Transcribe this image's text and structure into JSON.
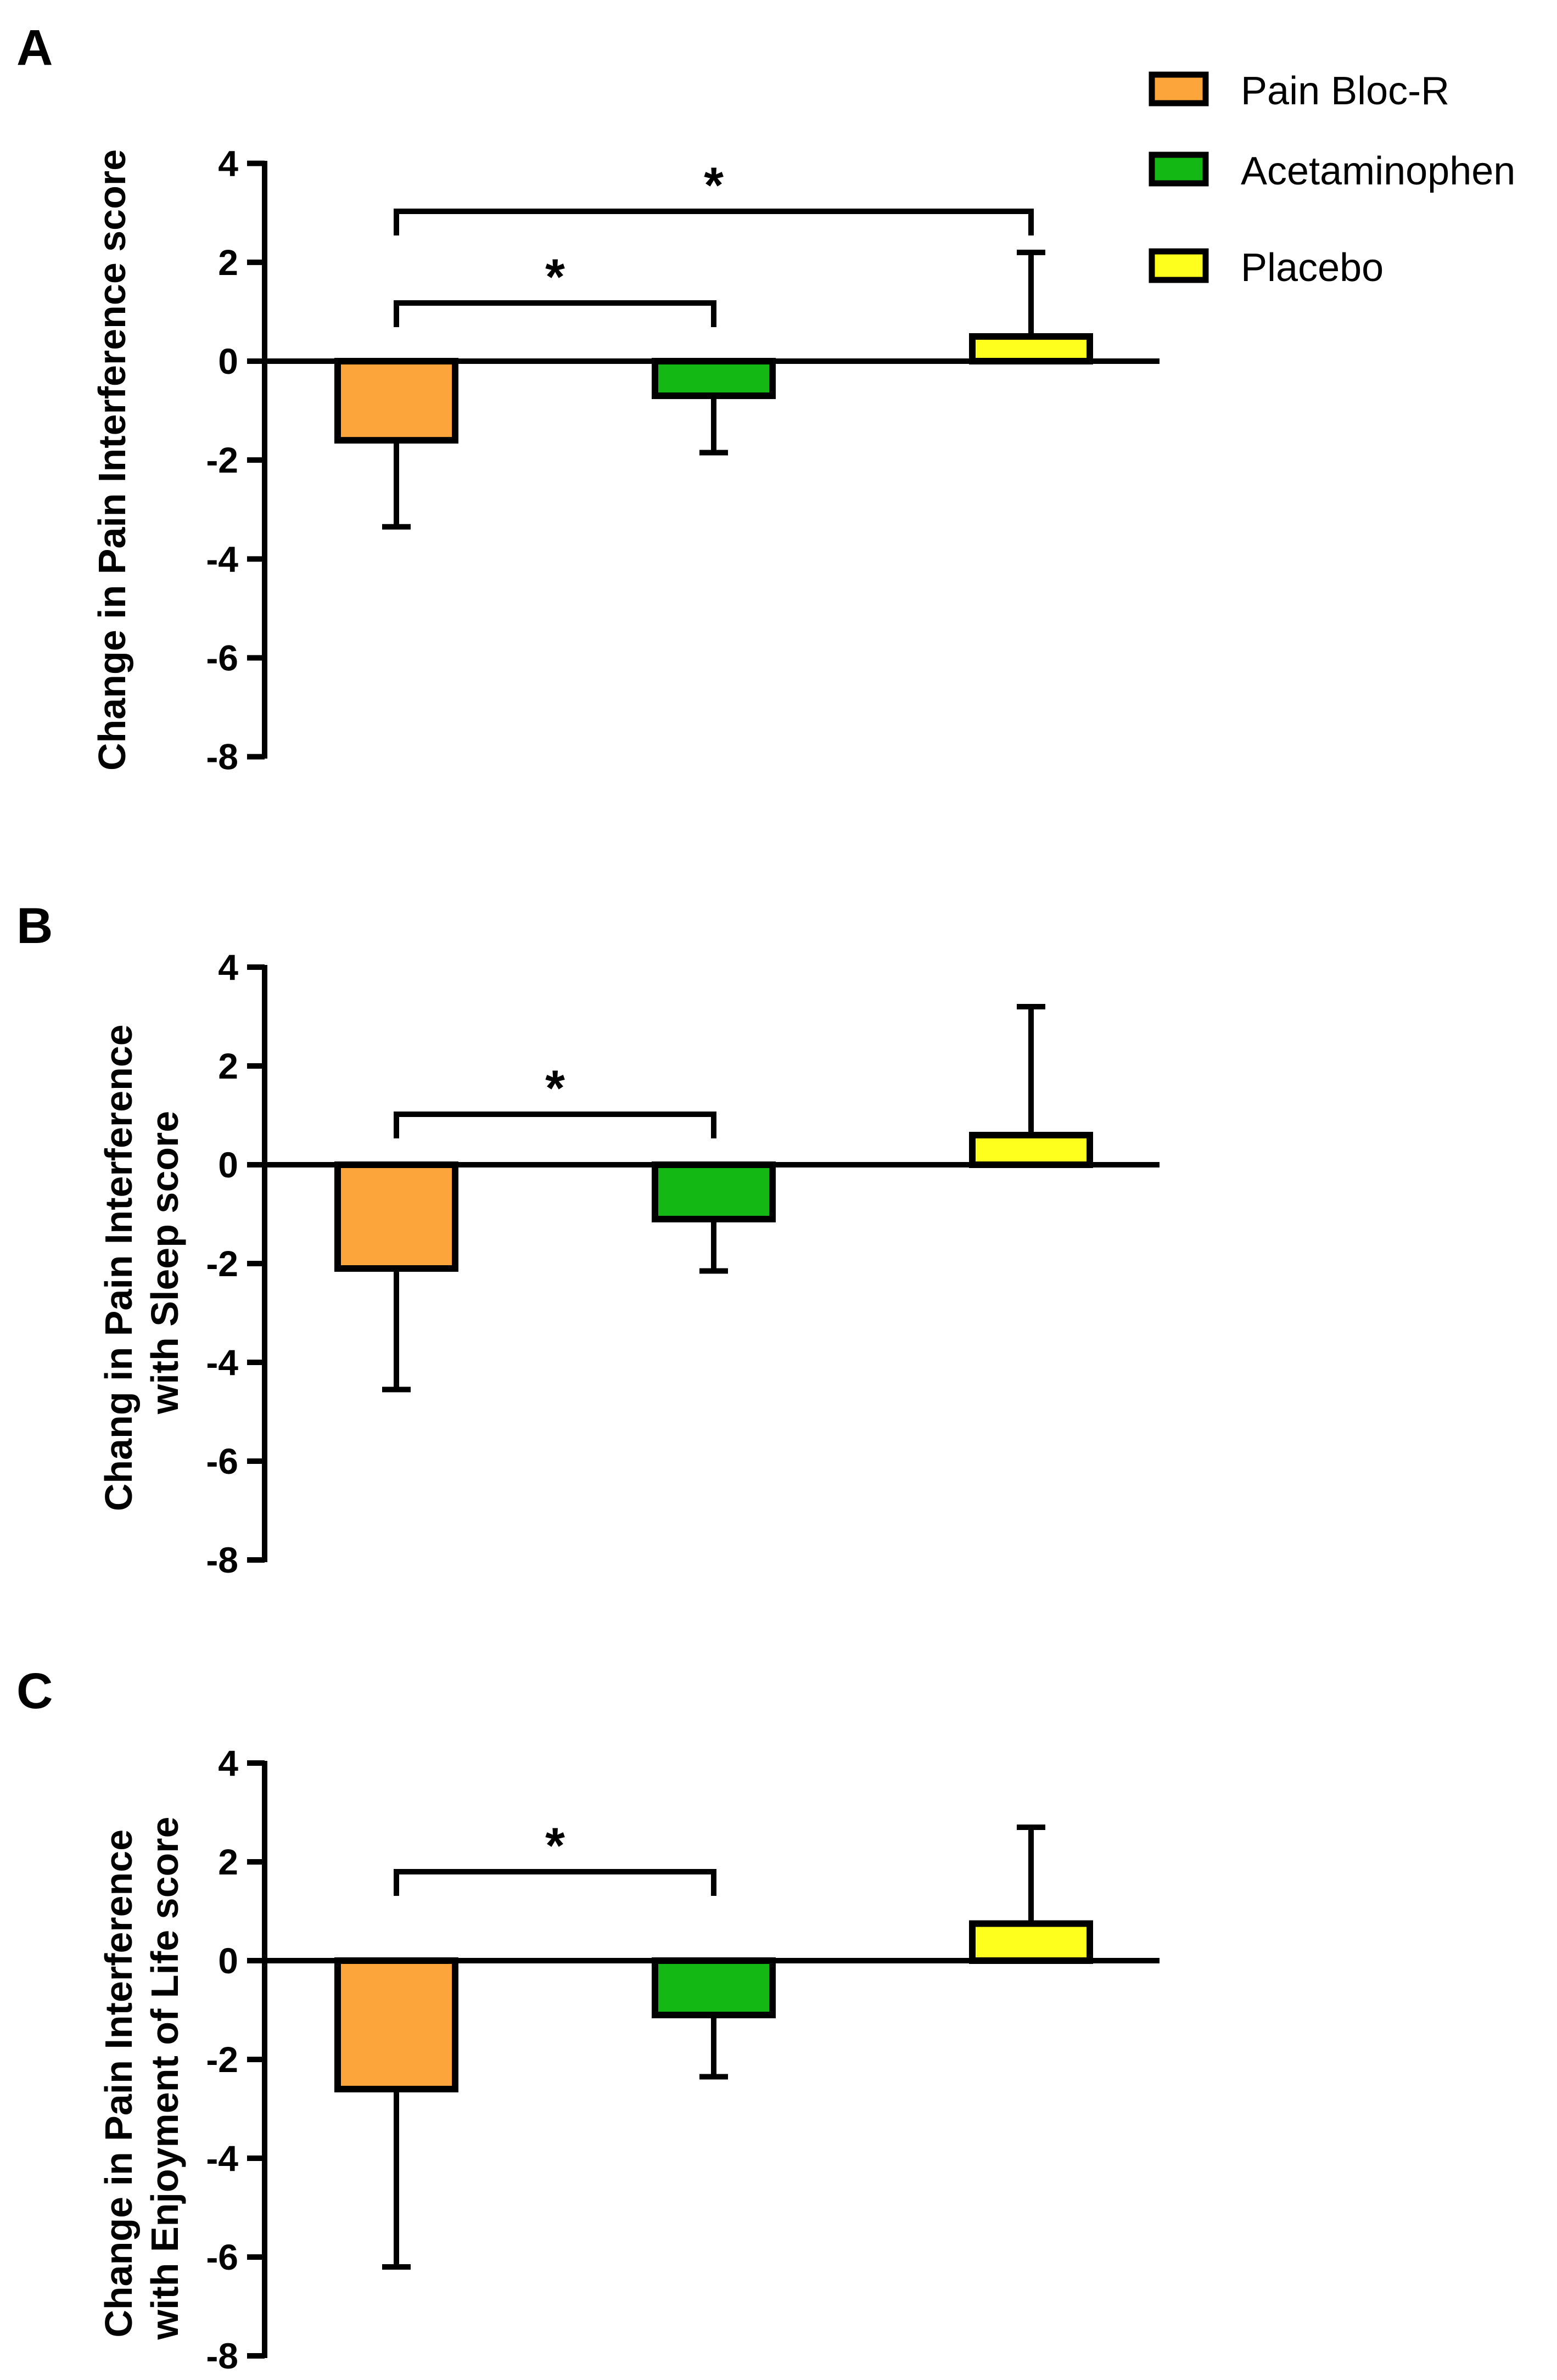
{
  "legend": [
    {
      "label": "Pain Bloc-R",
      "color": "#FBA53B"
    },
    {
      "label": "Acetaminophen",
      "color": "#14B814"
    },
    {
      "label": "Placebo",
      "color": "#FFFF1E"
    }
  ],
  "chart_data": [
    {
      "type": "bar",
      "panel": "A",
      "title": "",
      "xlabel": "",
      "ylabel": "Change in Pain Interference score",
      "ylim": [
        -8,
        4
      ],
      "yticks": [
        4,
        2,
        0,
        -2,
        -4,
        -6,
        -8
      ],
      "categories": [
        "Pain Bloc-R",
        "Acetaminophen",
        "Placebo"
      ],
      "values": [
        -1.6,
        -0.7,
        0.5
      ],
      "error_bars": [
        1.75,
        1.15,
        1.7
      ],
      "error_direction": [
        "down",
        "down",
        "up"
      ],
      "significance": [
        {
          "from": "Pain Bloc-R",
          "to": "Acetaminophen",
          "label": "*",
          "level": 1
        },
        {
          "from": "Pain Bloc-R",
          "to": "Placebo",
          "label": "*",
          "level": 2
        }
      ]
    },
    {
      "type": "bar",
      "panel": "B",
      "title": "",
      "xlabel": "",
      "ylabel": "Chang in Pain Interference with Sleep score",
      "ylabel_lines": [
        "Chang in Pain Interference",
        "with Sleep score"
      ],
      "ylim": [
        -8,
        4
      ],
      "yticks": [
        4,
        2,
        0,
        -2,
        -4,
        -6,
        -8
      ],
      "categories": [
        "Pain Bloc-R",
        "Acetaminophen",
        "Placebo"
      ],
      "values": [
        -2.1,
        -1.1,
        0.6
      ],
      "error_bars": [
        2.45,
        1.05,
        2.6
      ],
      "error_direction": [
        "down",
        "down",
        "up"
      ],
      "significance": [
        {
          "from": "Pain Bloc-R",
          "to": "Acetaminophen",
          "label": "*",
          "level": 1
        }
      ]
    },
    {
      "type": "bar",
      "panel": "C",
      "title": "",
      "xlabel": "",
      "ylabel": "Change in Pain Interference with  Enjoyment of Life score",
      "ylabel_lines": [
        "Change in Pain Interference",
        "with  Enjoyment of Life score"
      ],
      "ylim": [
        -8,
        4
      ],
      "yticks": [
        4,
        2,
        0,
        -2,
        -4,
        -6,
        -8
      ],
      "categories": [
        "Pain Bloc-R",
        "Acetaminophen",
        "Placebo"
      ],
      "values": [
        -2.6,
        -1.1,
        0.75
      ],
      "error_bars": [
        3.6,
        1.25,
        1.95
      ],
      "error_direction": [
        "down",
        "down",
        "up"
      ],
      "significance": [
        {
          "from": "Pain Bloc-R",
          "to": "Acetaminophen",
          "label": "*",
          "level": 1
        }
      ]
    }
  ]
}
